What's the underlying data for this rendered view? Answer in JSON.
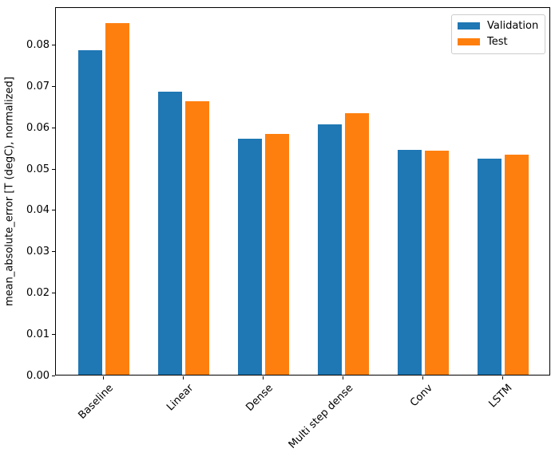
{
  "figure": {
    "background": "#ffffff"
  },
  "chart_data": {
    "type": "bar",
    "title": "",
    "xlabel": "",
    "ylabel": "mean_absolute_error [T (degC), normalized]",
    "categories": [
      "Baseline",
      "Linear",
      "Dense",
      "Multi step dense",
      "Conv",
      "LSTM"
    ],
    "series": [
      {
        "name": "Validation",
        "color": "#1f77b4",
        "values": [
          0.0785,
          0.0686,
          0.0572,
          0.0607,
          0.0545,
          0.0524
        ]
      },
      {
        "name": "Test",
        "color": "#ff7f0e",
        "values": [
          0.0852,
          0.0663,
          0.0584,
          0.0634,
          0.0543,
          0.0533
        ]
      }
    ],
    "ylim": [
      0,
      0.0892
    ],
    "yticks": [
      0.0,
      0.01,
      0.02,
      0.03,
      0.04,
      0.05,
      0.06,
      0.07,
      0.08
    ],
    "ytick_labels": [
      "0.00",
      "0.01",
      "0.02",
      "0.03",
      "0.04",
      "0.05",
      "0.06",
      "0.07",
      "0.08"
    ],
    "xtick_rotation_deg": 45,
    "grid": false,
    "legend": {
      "position": "upper right",
      "entries": [
        "Validation",
        "Test"
      ]
    }
  }
}
